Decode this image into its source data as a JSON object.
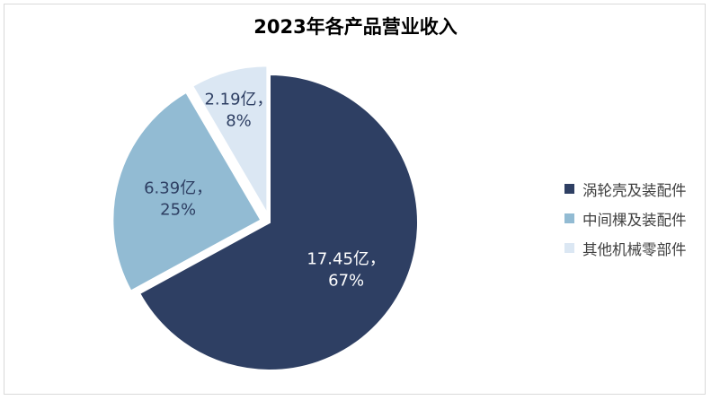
{
  "chart_data": {
    "type": "pie",
    "title": "2023年各产品营业收入",
    "unit": "亿",
    "slices": [
      {
        "name": "涡轮壳及装配件",
        "value": 17.45,
        "percent": "67%",
        "label_line1": "17.45亿，",
        "label_line2": "67%",
        "color": "#2e3f63"
      },
      {
        "name": "中间棵及装配件",
        "value": 6.39,
        "percent": "25%",
        "label_line1": "6.39亿，",
        "label_line2": "25%",
        "color": "#92bbd3"
      },
      {
        "name": "其他机械零部件",
        "value": 2.19,
        "percent": "8%",
        "label_line1": "2.19亿，",
        "label_line2": "8%",
        "color": "#dbe7f3"
      }
    ],
    "legend_position": "right",
    "label_color_dark": "#2e3f63"
  }
}
